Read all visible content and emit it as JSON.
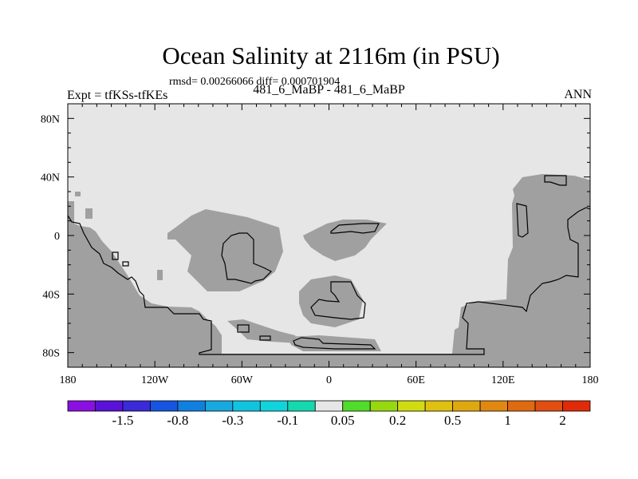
{
  "title": "Ocean Salinity at 2116m (in PSU)",
  "stats": "rmsd= 0.00266066 diff= 0.000701904",
  "left_label": "Expt = tfKSs-tfKEs",
  "center_label": "481_6_MaBP - 481_6_MaBP",
  "right_label": "ANN",
  "map": {
    "projection": "cylindrical equidistant",
    "lon_range": [
      -180,
      180
    ],
    "lat_range": [
      -90,
      90
    ],
    "lat_labels": [
      {
        "lat": 80,
        "text": "80N"
      },
      {
        "lat": 40,
        "text": "40N"
      },
      {
        "lat": 0,
        "text": "0"
      },
      {
        "lat": -40,
        "text": "40S"
      },
      {
        "lat": -80,
        "text": "80S"
      }
    ],
    "lon_labels": [
      {
        "lon": -180,
        "text": "180"
      },
      {
        "lon": -120,
        "text": "120W"
      },
      {
        "lon": -60,
        "text": "60W"
      },
      {
        "lon": 0,
        "text": "0"
      },
      {
        "lon": 60,
        "text": "60E"
      },
      {
        "lon": 120,
        "text": "120E"
      },
      {
        "lon": 180,
        "text": "180"
      }
    ],
    "field_color": "#e6e6e6",
    "missing_color": "#a0a0a0"
  },
  "colorbar": {
    "colors": [
      "#8a0fe0",
      "#5a12d8",
      "#3a2ad8",
      "#1655e0",
      "#1080e0",
      "#18a8e0",
      "#10c4e0",
      "#10d4dc",
      "#14d8b0",
      "#e6e6e6",
      "#50dc28",
      "#98d810",
      "#d0dc10",
      "#e0c010",
      "#e0a810",
      "#e08810",
      "#e06a10",
      "#e04e10",
      "#e02a08"
    ],
    "labels": [
      {
        "boundary": 2,
        "text": "-1.5"
      },
      {
        "boundary": 4,
        "text": "-0.8"
      },
      {
        "boundary": 6,
        "text": "-0.3"
      },
      {
        "boundary": 8,
        "text": "-0.1"
      },
      {
        "boundary": 10,
        "text": "0.05"
      },
      {
        "boundary": 12,
        "text": "0.2"
      },
      {
        "boundary": 14,
        "text": "0.5"
      },
      {
        "boundary": 16,
        "text": "1"
      },
      {
        "boundary": 18,
        "text": "2"
      }
    ]
  }
}
